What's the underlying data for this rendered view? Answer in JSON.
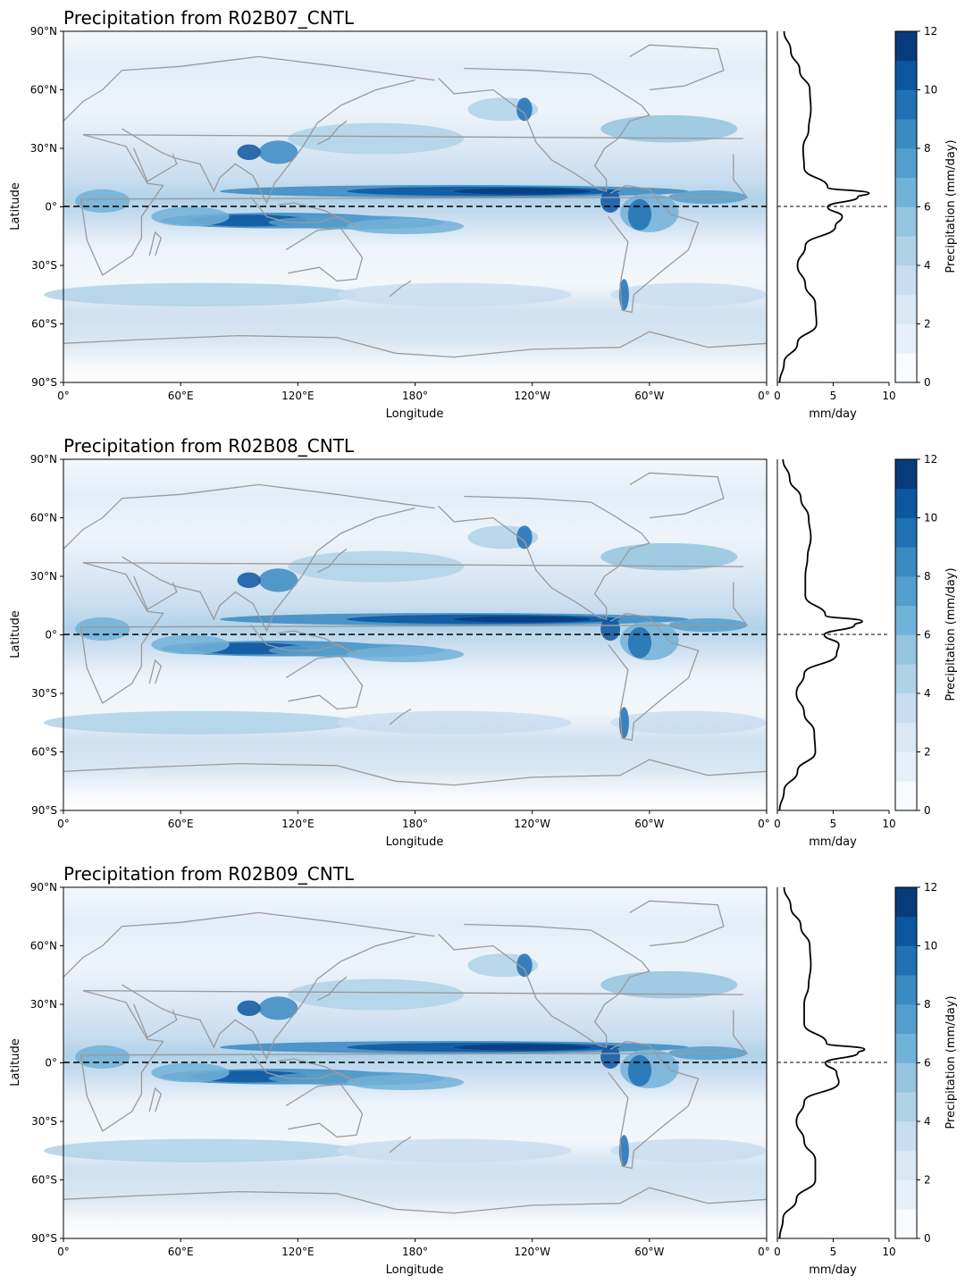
{
  "figure": {
    "xlabel": "Longitude",
    "ylabel": "Latitude",
    "profile_xlabel": "mm/day",
    "colorbar_label": "Precipitation (mm/day)",
    "lat_ticks": [
      "90°N",
      "60°N",
      "30°N",
      "0°",
      "30°S",
      "60°S",
      "90°S"
    ],
    "lon_ticks": [
      "0°",
      "60°E",
      "120°E",
      "180°",
      "120°W",
      "60°W",
      "0°"
    ],
    "profile_ticks": [
      "0",
      "5",
      "10"
    ],
    "colorbar_ticks": [
      "0",
      "2",
      "4",
      "6",
      "8",
      "10",
      "12"
    ],
    "colors": {
      "levels": [
        "#f7fbff",
        "#e7f0fa",
        "#dae8f5",
        "#c9ddf0",
        "#b0d2e8",
        "#94c4df",
        "#72b2d8",
        "#539ecd",
        "#3a8ac2",
        "#2070b4",
        "#0c56a0",
        "#083b7c"
      ],
      "outline": "#9a9a9a"
    }
  },
  "chart_data": [
    {
      "type": "heatmap",
      "title": "Precipitation from R02B07_CNTL",
      "xlabel": "Longitude",
      "ylabel": "Latitude",
      "xlim": [
        0,
        360
      ],
      "ylim": [
        -90,
        90
      ],
      "colorbar": {
        "label": "Precipitation (mm/day)",
        "range": [
          0,
          12
        ],
        "levels": 12
      },
      "zonal_mean_profile": {
        "xlabel": "mm/day",
        "xlim": [
          0,
          10
        ],
        "lat": [
          -90,
          -80,
          -70,
          -60,
          -50,
          -40,
          -30,
          -20,
          -10,
          -5,
          0,
          5,
          7,
          10,
          20,
          30,
          40,
          50,
          60,
          70,
          80,
          90
        ],
        "value": [
          0.2,
          0.6,
          1.8,
          3.5,
          3.4,
          2.5,
          1.8,
          2.5,
          5.2,
          5.8,
          4.5,
          7.2,
          8.2,
          4.5,
          2.4,
          2.3,
          2.8,
          3.0,
          2.9,
          2.0,
          1.2,
          0.6
        ]
      }
    },
    {
      "type": "heatmap",
      "title": "Precipitation from R02B08_CNTL",
      "xlabel": "Longitude",
      "ylabel": "Latitude",
      "xlim": [
        0,
        360
      ],
      "ylim": [
        -90,
        90
      ],
      "colorbar": {
        "label": "Precipitation (mm/day)",
        "range": [
          0,
          12
        ],
        "levels": 12
      },
      "zonal_mean_profile": {
        "xlabel": "mm/day",
        "xlim": [
          0,
          10
        ],
        "lat": [
          -90,
          -80,
          -70,
          -60,
          -50,
          -40,
          -30,
          -20,
          -10,
          -5,
          0,
          5,
          7,
          10,
          20,
          30,
          40,
          50,
          60,
          70,
          80,
          90
        ],
        "value": [
          0.2,
          0.6,
          1.8,
          3.4,
          3.3,
          2.4,
          1.7,
          2.4,
          5.3,
          5.5,
          4.2,
          6.9,
          7.6,
          4.3,
          2.5,
          2.5,
          2.7,
          3.0,
          2.8,
          2.1,
          1.1,
          0.5
        ]
      }
    },
    {
      "type": "heatmap",
      "title": "Precipitation from R02B09_CNTL",
      "xlabel": "Longitude",
      "ylabel": "Latitude",
      "xlim": [
        0,
        360
      ],
      "ylim": [
        -90,
        90
      ],
      "colorbar": {
        "label": "Precipitation (mm/day)",
        "range": [
          0,
          12
        ],
        "levels": 12
      },
      "zonal_mean_profile": {
        "xlabel": "mm/day",
        "xlim": [
          0,
          10
        ],
        "lat": [
          -90,
          -80,
          -70,
          -60,
          -50,
          -40,
          -30,
          -20,
          -10,
          -5,
          0,
          5,
          7,
          10,
          20,
          30,
          40,
          50,
          60,
          70,
          80,
          90
        ],
        "value": [
          0.2,
          0.5,
          1.7,
          3.4,
          3.4,
          2.4,
          1.7,
          2.4,
          5.5,
          5.3,
          4.3,
          7.2,
          7.8,
          4.4,
          2.4,
          2.4,
          2.8,
          3.0,
          2.9,
          2.1,
          1.2,
          0.6
        ]
      }
    }
  ]
}
